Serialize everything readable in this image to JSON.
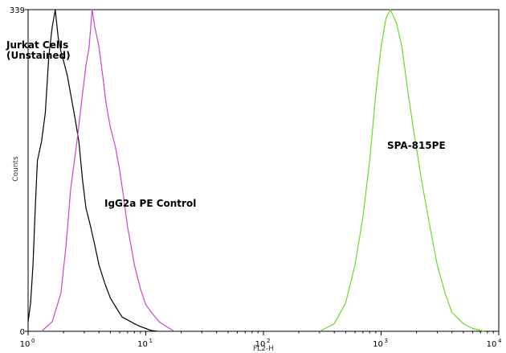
{
  "chart_data": {
    "type": "line",
    "title": "",
    "xlabel": "FL2-H",
    "ylabel": "Counts",
    "x_scale": "log",
    "xlim": [
      1,
      10000
    ],
    "ylim": [
      0,
      339
    ],
    "y_ticks": [
      "0",
      "339"
    ],
    "x_ticks": [
      {
        "base": "10",
        "exp": "0"
      },
      {
        "base": "10",
        "exp": "1"
      },
      {
        "base": "10",
        "exp": "2"
      },
      {
        "base": "10",
        "exp": "3"
      },
      {
        "base": "10",
        "exp": "4"
      }
    ],
    "grid": false,
    "annotations": [
      {
        "text": "Jurkat Cells",
        "series": "Jurkat Cells (Unstained)"
      },
      {
        "text": "(Unstained)",
        "series": "Jurkat Cells (Unstained)"
      },
      {
        "text": "IgG2a PE Control",
        "series": "IgG2a PE Control"
      },
      {
        "text": "SPA-815PE",
        "series": "SPA-815PE"
      }
    ],
    "series": [
      {
        "name": "Jurkat Cells (Unstained)",
        "color": "#000000",
        "x": [
          1.0,
          1.05,
          1.1,
          1.15,
          1.2,
          1.3,
          1.4,
          1.5,
          1.6,
          1.7,
          1.8,
          1.9,
          2.0,
          2.15,
          2.3,
          2.5,
          2.7,
          2.9,
          3.1,
          3.4,
          3.7,
          4.0,
          4.5,
          5.0,
          5.6,
          6.3,
          7.0,
          8.0,
          9.0,
          10.0,
          11.0,
          12.5
        ],
        "y": [
          10,
          30,
          70,
          130,
          180,
          200,
          230,
          290,
          320,
          339,
          310,
          295,
          285,
          270,
          250,
          225,
          200,
          160,
          130,
          110,
          90,
          70,
          50,
          35,
          25,
          15,
          12,
          8,
          5,
          3,
          1,
          0
        ]
      },
      {
        "name": "IgG2a PE Control",
        "color": "#cc44cc",
        "x": [
          1.3,
          1.6,
          1.9,
          2.1,
          2.3,
          2.6,
          2.9,
          3.1,
          3.3,
          3.5,
          3.7,
          4.0,
          4.3,
          4.6,
          5.0,
          5.5,
          6.0,
          6.5,
          7.0,
          7.5,
          8.0,
          9.0,
          10.0,
          11.5,
          13.0,
          15.0,
          17.5
        ],
        "y": [
          0,
          10,
          40,
          90,
          150,
          200,
          250,
          280,
          300,
          339,
          320,
          300,
          270,
          240,
          215,
          195,
          170,
          140,
          110,
          90,
          70,
          45,
          28,
          18,
          10,
          5,
          0
        ]
      },
      {
        "name": "SPA-815PE",
        "color": "#66dd22",
        "x": [
          300,
          400,
          500,
          600,
          700,
          800,
          900,
          1000,
          1100,
          1200,
          1350,
          1500,
          1700,
          1900,
          2200,
          2600,
          3000,
          3500,
          4000,
          5000,
          6000,
          7500
        ],
        "y": [
          0,
          8,
          30,
          70,
          120,
          180,
          250,
          300,
          330,
          339,
          325,
          300,
          250,
          210,
          160,
          110,
          70,
          40,
          20,
          8,
          3,
          0
        ]
      }
    ]
  }
}
